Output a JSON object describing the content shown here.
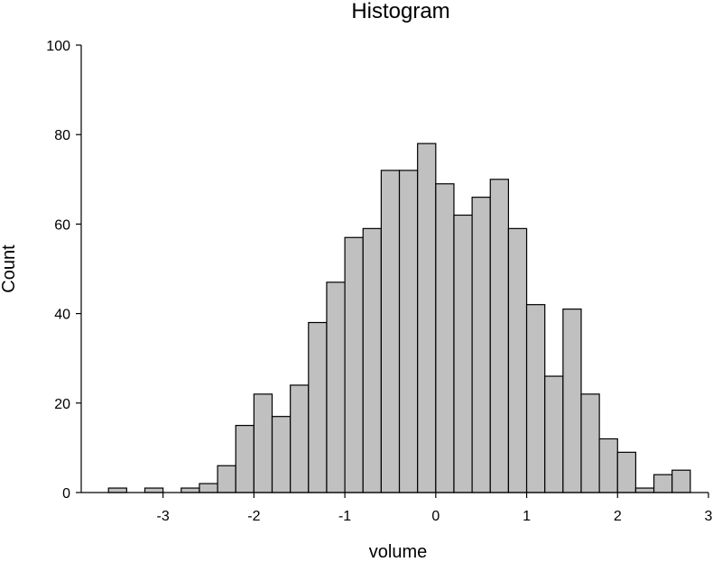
{
  "chart_data": {
    "type": "bar",
    "title": "Histogram",
    "xlabel": "volume",
    "ylabel": "Count",
    "xlim": [
      -3.9,
      3.0
    ],
    "ylim": [
      0,
      100
    ],
    "bin_width": 0.2,
    "bins": [
      {
        "x0": -3.6,
        "x1": -3.4,
        "count": 1
      },
      {
        "x0": -3.4,
        "x1": -3.2,
        "count": 0
      },
      {
        "x0": -3.2,
        "x1": -3.0,
        "count": 1
      },
      {
        "x0": -3.0,
        "x1": -2.8,
        "count": 0
      },
      {
        "x0": -2.8,
        "x1": -2.6,
        "count": 1
      },
      {
        "x0": -2.6,
        "x1": -2.4,
        "count": 2
      },
      {
        "x0": -2.4,
        "x1": -2.2,
        "count": 6
      },
      {
        "x0": -2.2,
        "x1": -2.0,
        "count": 15
      },
      {
        "x0": -2.0,
        "x1": -1.8,
        "count": 22
      },
      {
        "x0": -1.8,
        "x1": -1.6,
        "count": 17
      },
      {
        "x0": -1.6,
        "x1": -1.4,
        "count": 24
      },
      {
        "x0": -1.4,
        "x1": -1.2,
        "count": 38
      },
      {
        "x0": -1.2,
        "x1": -1.0,
        "count": 47
      },
      {
        "x0": -1.0,
        "x1": -0.8,
        "count": 57
      },
      {
        "x0": -0.8,
        "x1": -0.6,
        "count": 59
      },
      {
        "x0": -0.6,
        "x1": -0.4,
        "count": 72
      },
      {
        "x0": -0.4,
        "x1": -0.2,
        "count": 72
      },
      {
        "x0": -0.2,
        "x1": 0.0,
        "count": 78
      },
      {
        "x0": 0.0,
        "x1": 0.2,
        "count": 69
      },
      {
        "x0": 0.2,
        "x1": 0.4,
        "count": 62
      },
      {
        "x0": 0.4,
        "x1": 0.6,
        "count": 66
      },
      {
        "x0": 0.6,
        "x1": 0.8,
        "count": 70
      },
      {
        "x0": 0.8,
        "x1": 1.0,
        "count": 59
      },
      {
        "x0": 1.0,
        "x1": 1.2,
        "count": 42
      },
      {
        "x0": 1.2,
        "x1": 1.4,
        "count": 26
      },
      {
        "x0": 1.4,
        "x1": 1.6,
        "count": 41
      },
      {
        "x0": 1.6,
        "x1": 1.8,
        "count": 22
      },
      {
        "x0": 1.8,
        "x1": 2.0,
        "count": 12
      },
      {
        "x0": 2.0,
        "x1": 2.2,
        "count": 9
      },
      {
        "x0": 2.2,
        "x1": 2.4,
        "count": 1
      },
      {
        "x0": 2.4,
        "x1": 2.6,
        "count": 4
      },
      {
        "x0": 2.6,
        "x1": 2.8,
        "count": 5
      }
    ],
    "x_ticks": [
      -3,
      -2,
      -1,
      0,
      1,
      2,
      3
    ],
    "x_tick_labels": [
      "-3",
      "-2",
      "-1",
      "0",
      "1",
      "2",
      "3"
    ],
    "y_ticks": [
      0,
      20,
      40,
      60,
      80,
      100
    ],
    "y_tick_labels": [
      "0",
      "20",
      "40",
      "60",
      "80",
      "100"
    ],
    "grid": false,
    "legend": "none",
    "bar_fill": "#c0c0c0",
    "bar_stroke": "#000000"
  }
}
